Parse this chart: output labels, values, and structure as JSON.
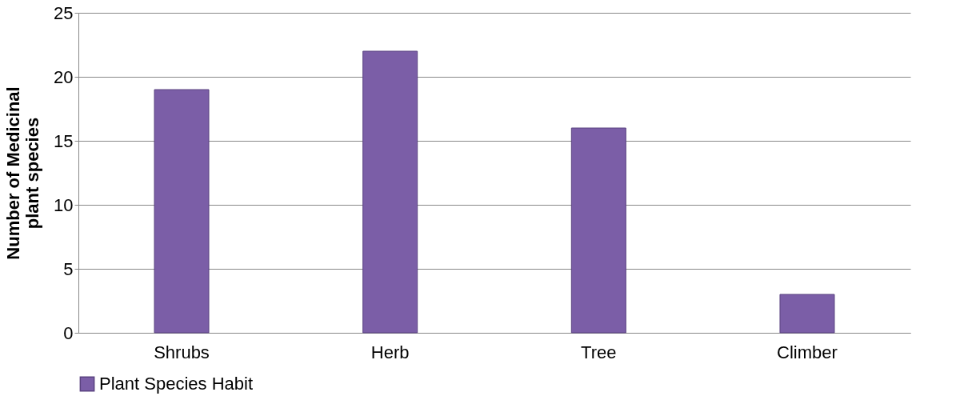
{
  "chart_data": {
    "type": "bar",
    "ylabel": "Number of Medicinal\nplant species",
    "categories": [
      "Shrubs",
      "Herb",
      "Tree",
      "Climber"
    ],
    "series": [
      {
        "name": "Plant Species Habit",
        "color": "#7b5ea7",
        "values": [
          19,
          22,
          16,
          3
        ]
      }
    ],
    "ylim": [
      0,
      25
    ],
    "yticks": [
      0,
      5,
      10,
      15,
      20,
      25
    ],
    "grid": "y",
    "legend": "bottom"
  }
}
